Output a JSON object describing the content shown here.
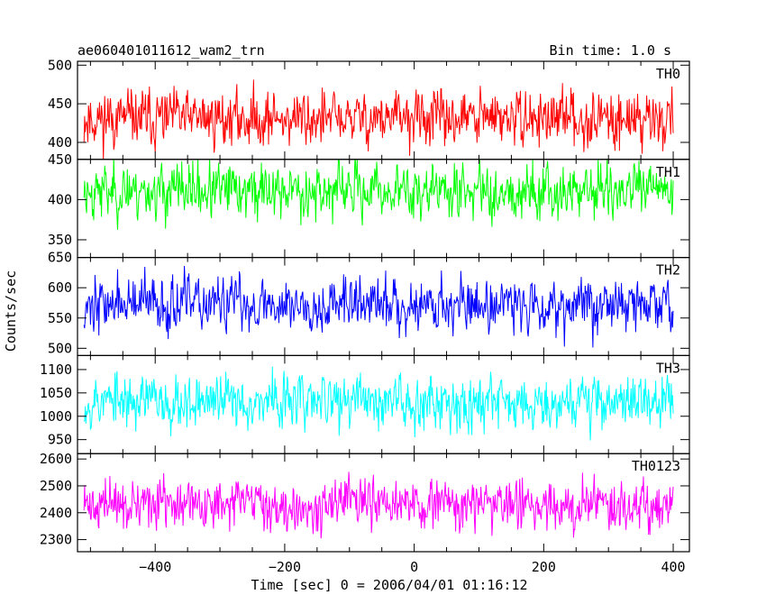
{
  "header": {
    "title": "ae060401011612_wam2_trn",
    "bin_time": "Bin time: 1.0 s"
  },
  "chart_data": {
    "type": "line",
    "title": "ae060401011612_wam2_trn",
    "subtitle": "Bin time: 1.0 s",
    "xlabel": "Time [sec] 0 = 2006/04/01 01:16:12",
    "ylabel": "Counts/sec",
    "xlim": [
      -520,
      425
    ],
    "x_ticks": [
      -400,
      -200,
      0,
      200,
      400
    ],
    "x_tick_labels": [
      "−400",
      "−200",
      "0",
      "200",
      "400"
    ],
    "x_range_data": [
      -510,
      400
    ],
    "bin_time_s": 1.0,
    "grid": false,
    "panels": [
      {
        "name": "TH0",
        "color": "#ff0000",
        "ylim": [
          378,
          505
        ],
        "y_ticks": [
          400,
          450,
          500
        ],
        "y_tick_labels": [
          "400",
          "450",
          "500"
        ],
        "mean": 431,
        "noise_sd": 20,
        "seed": 11
      },
      {
        "name": "TH1",
        "color": "#00ff00",
        "ylim": [
          328,
          450
        ],
        "y_ticks": [
          350,
          400,
          450
        ],
        "y_tick_labels": [
          "350",
          "400",
          "450"
        ],
        "mean": 411,
        "noise_sd": 19,
        "seed": 23
      },
      {
        "name": "TH2",
        "color": "#0000ff",
        "ylim": [
          488,
          650
        ],
        "y_ticks": [
          500,
          550,
          600,
          650
        ],
        "y_tick_labels": [
          "500",
          "550",
          "600",
          "650"
        ],
        "mean": 573,
        "noise_sd": 25,
        "seed": 37
      },
      {
        "name": "TH3",
        "color": "#00ffff",
        "ylim": [
          920,
          1130
        ],
        "y_ticks": [
          950,
          1000,
          1050,
          1100
        ],
        "y_tick_labels": [
          "950",
          "1000",
          "1050",
          "1100"
        ],
        "mean": 1033,
        "noise_sd": 32,
        "seed": 53
      },
      {
        "name": "TH0123",
        "color": "#ff00ff",
        "ylim": [
          2255,
          2620
        ],
        "y_ticks": [
          2300,
          2400,
          2500,
          2600
        ],
        "y_tick_labels": [
          "2300",
          "2400",
          "2500",
          "2600"
        ],
        "mean": 2430,
        "noise_sd": 50,
        "seed": 71
      }
    ]
  }
}
